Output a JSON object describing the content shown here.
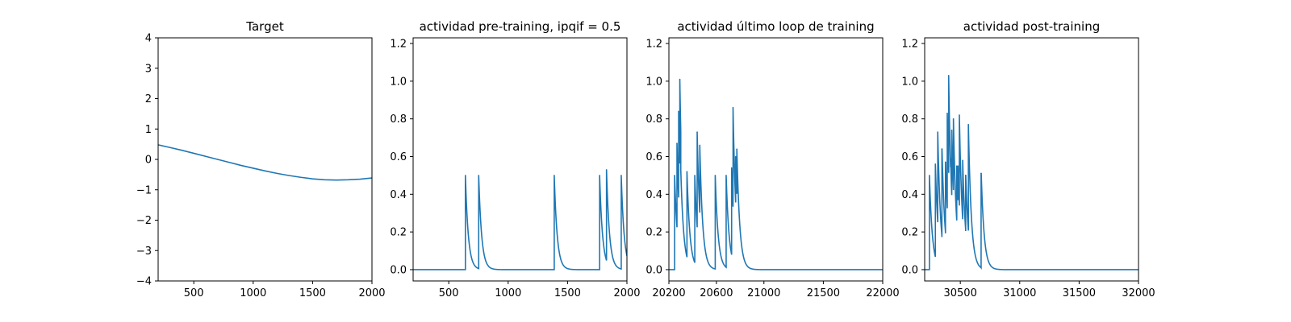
{
  "figure": {
    "line_color": "#1f77b4"
  },
  "chart_data": [
    {
      "type": "line",
      "title": "Target",
      "xlim": [
        200,
        2000
      ],
      "ylim": [
        -4,
        4
      ],
      "xticks": [
        500,
        1000,
        1500,
        2000
      ],
      "xtick_labels": [
        "500",
        "1000",
        "1500",
        "2000"
      ],
      "yticks": [
        -4,
        -3,
        -2,
        -1,
        0,
        1,
        2,
        3,
        4
      ],
      "ytick_labels": [
        "−4",
        "−3",
        "−2",
        "−1",
        "0",
        "1",
        "2",
        "3",
        "4"
      ],
      "grid": false,
      "x": [
        200,
        300,
        400,
        500,
        600,
        700,
        800,
        900,
        1000,
        1100,
        1200,
        1300,
        1400,
        1500,
        1600,
        1700,
        1800,
        1900,
        2000
      ],
      "y": [
        0.48,
        0.39,
        0.3,
        0.2,
        0.1,
        0.0,
        -0.1,
        -0.2,
        -0.29,
        -0.38,
        -0.46,
        -0.53,
        -0.59,
        -0.64,
        -0.67,
        -0.68,
        -0.67,
        -0.65,
        -0.61
      ]
    },
    {
      "type": "line",
      "title": "actividad pre-training, ipqif = 0.5",
      "xlim": [
        200,
        2000
      ],
      "ylim": [
        -0.06,
        1.23
      ],
      "xticks": [
        500,
        1000,
        1500,
        2000
      ],
      "xtick_labels": [
        "500",
        "1000",
        "1500",
        "2000"
      ],
      "yticks": [
        0.0,
        0.2,
        0.4,
        0.6,
        0.8,
        1.0,
        1.2
      ],
      "ytick_labels": [
        "0.0",
        "0.2",
        "0.4",
        "0.6",
        "0.8",
        "1.0",
        "1.2"
      ],
      "grid": false,
      "baseline": 0,
      "tau": 25,
      "spikes": [
        [
          640,
          0.5
        ],
        [
          752,
          0.5
        ],
        [
          1388,
          0.5
        ],
        [
          1770,
          0.5
        ],
        [
          1828,
          0.53
        ],
        [
          1952,
          0.5
        ]
      ]
    },
    {
      "type": "line",
      "title": "actividad último loop de training",
      "xlim": [
        20200,
        22000
      ],
      "ylim": [
        -0.06,
        1.23
      ],
      "xticks": [
        20200,
        20600,
        21000,
        21500,
        22000
      ],
      "xtick_labels": [
        "20200",
        "20600",
        "21000",
        "21500",
        "22000"
      ],
      "yticks": [
        0.0,
        0.2,
        0.4,
        0.6,
        0.8,
        1.0,
        1.2
      ],
      "ytick_labels": [
        "0.0",
        "0.2",
        "0.4",
        "0.6",
        "0.8",
        "1.0",
        "1.2"
      ],
      "grid": false,
      "baseline": 0,
      "tau": 25,
      "spikes": [
        [
          20248,
          0.5
        ],
        [
          20268,
          0.67
        ],
        [
          20282,
          0.84
        ],
        [
          20292,
          1.01
        ],
        [
          20300,
          0.53
        ],
        [
          20352,
          0.52
        ],
        [
          20418,
          0.5
        ],
        [
          20438,
          0.73
        ],
        [
          20460,
          0.66
        ],
        [
          20590,
          0.5
        ],
        [
          20682,
          0.5
        ],
        [
          20728,
          0.54
        ],
        [
          20740,
          0.86
        ],
        [
          20762,
          0.6
        ],
        [
          20772,
          0.64
        ]
      ]
    },
    {
      "type": "line",
      "title": "actividad post-training",
      "xlim": [
        30200,
        32000
      ],
      "ylim": [
        -0.06,
        1.23
      ],
      "xticks": [
        30500,
        31000,
        31500,
        32000
      ],
      "xtick_labels": [
        "30500",
        "31000",
        "31500",
        "32000"
      ],
      "yticks": [
        0.0,
        0.2,
        0.4,
        0.6,
        0.8,
        1.0,
        1.2
      ],
      "ytick_labels": [
        "0.0",
        "0.2",
        "0.4",
        "0.6",
        "0.8",
        "1.0",
        "1.2"
      ],
      "grid": false,
      "baseline": 0,
      "tau": 25,
      "spikes": [
        [
          30240,
          0.5
        ],
        [
          30290,
          0.56
        ],
        [
          30310,
          0.73
        ],
        [
          30345,
          0.64
        ],
        [
          30375,
          0.57
        ],
        [
          30390,
          0.83
        ],
        [
          30402,
          1.03
        ],
        [
          30418,
          0.59
        ],
        [
          30428,
          0.74
        ],
        [
          30442,
          0.8
        ],
        [
          30470,
          0.55
        ],
        [
          30480,
          0.55
        ],
        [
          30492,
          0.82
        ],
        [
          30520,
          0.58
        ],
        [
          30545,
          0.5
        ],
        [
          30568,
          0.77
        ],
        [
          30675,
          0.51
        ]
      ]
    }
  ]
}
